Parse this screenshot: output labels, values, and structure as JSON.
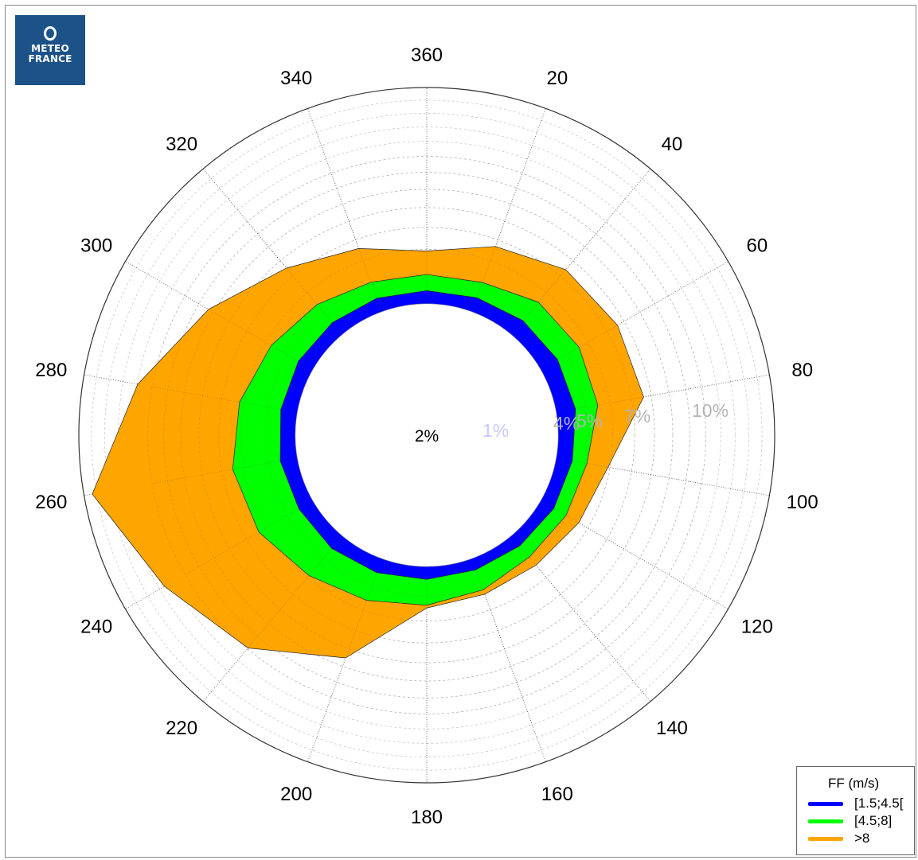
{
  "logo": {
    "line1": "METEO",
    "line2": "FRANCE"
  },
  "chart_data": {
    "type": "polar-area",
    "directions": [
      360,
      20,
      40,
      60,
      80,
      100,
      120,
      140,
      160,
      180,
      200,
      220,
      240,
      260,
      280,
      300,
      320,
      340
    ],
    "direction_labels": [
      "360",
      "20",
      "40",
      "60",
      "80",
      "100",
      "120",
      "140",
      "160",
      "180",
      "200",
      "220",
      "240",
      "260",
      "280",
      "300",
      "320",
      "340"
    ],
    "radial_axis": {
      "scale": "sqrt",
      "max": 14,
      "center_value": 2
    },
    "center_label": "2%",
    "ring_labels": [
      "1%",
      "4%",
      "5%",
      "7%",
      "10%"
    ],
    "series": [
      {
        "name": ">8",
        "color": "#ffa500",
        "values": [
          3.93,
          4.67,
          5.41,
          5.61,
          5.61,
          3.92,
          3.56,
          3.34,
          3.32,
          3.46,
          6.51,
          8.94,
          10.6,
          13.34,
          9.96,
          7.34,
          5.51,
          4.57
        ]
      },
      {
        "name": "[4.5;8]",
        "color": "#00ff00",
        "values": [
          2.99,
          3.06,
          3.49,
          3.58,
          3.49,
          3.06,
          2.99,
          2.94,
          3.14,
          3.35,
          3.58,
          3.89,
          4.35,
          4.49,
          4.18,
          3.73,
          3.37,
          3.07
        ]
      },
      {
        "name": "[1.5;4.5[",
        "color": "#0000ff",
        "values": [
          2.42,
          2.48,
          2.59,
          2.64,
          2.64,
          2.53,
          2.49,
          2.42,
          2.38,
          2.41,
          2.48,
          2.53,
          2.52,
          2.56,
          2.54,
          2.54,
          2.5,
          2.46
        ]
      }
    ],
    "legend": {
      "title": "FF (m/s)",
      "position": "bottom-right"
    }
  }
}
